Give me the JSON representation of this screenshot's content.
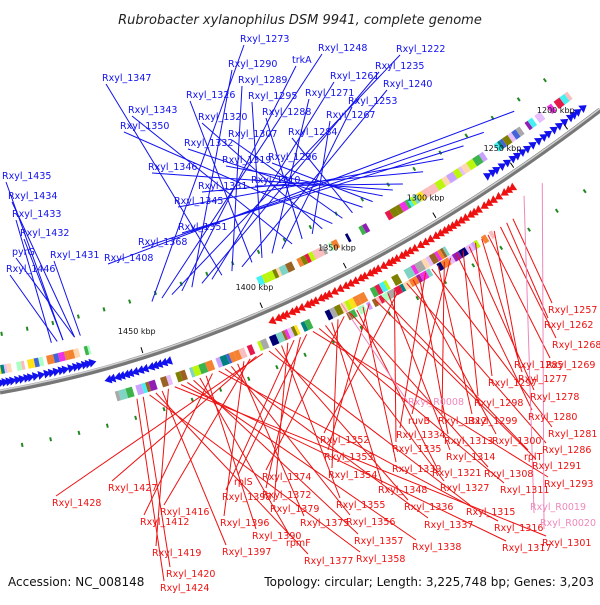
{
  "title": "Rubrobacter xylanophilus DSM 9941, complete genome",
  "accession": "Accession: NC_008148",
  "stats": "Topology: circular; Length: 3,225,748 bp; Genes: 3,203",
  "colors": {
    "forward": "#1111ee",
    "reverse": "#ee1111",
    "rna": "#ee88bb",
    "backbone": "#777777",
    "tick_mark": "#228822"
  },
  "kbp_ticks": [
    "1200 kbp",
    "1250 kbp",
    "1300 kbp",
    "1350 kbp",
    "1400 kbp",
    "1450 kbp"
  ],
  "forward_labels": [
    "Rxyl_1273",
    "Rxyl_1248",
    "Rxyl_1222",
    "trkA",
    "Rxyl_1290",
    "Rxyl_1235",
    "Rxyl_1261",
    "Rxyl_1347",
    "Rxyl_1289",
    "Rxyl_1240",
    "Rxyl_1326",
    "Rxyl_1295",
    "Rxyl_1271",
    "Rxyl_1253",
    "Rxyl_1343",
    "Rxyl_1288",
    "Rxyl_1267",
    "Rxyl_1320",
    "Rxyl_1350",
    "Rxyl_1307",
    "Rxyl_1284",
    "Rxyl_1332",
    "Rxyl_1296",
    "Rxyl_1319",
    "Rxyl_1346",
    "Rxyl_1310",
    "Rxyl_1435",
    "Rxyl_1331",
    "Rxyl_1434",
    "Rxyl_1345",
    "Rxyl_1433",
    "Rxyl_1351",
    "Rxyl_1432",
    "Rxyl_1368",
    "pyrG",
    "Rxyl_1431",
    "Rxyl_1408",
    "Rxyl_1446"
  ],
  "reverse_labels": [
    "Rxyl_1257",
    "Rxyl_1262",
    "Rxyl_1268",
    "Rxyl_1285",
    "Rxyl_1269",
    "Rxyl_1277",
    "Rxyl_1297",
    "Rxyl_1278",
    "Rxyl_1298",
    "Rxyl_1280",
    "ruvB",
    "Rxyl_1312",
    "Rxyl_1299",
    "Rxyl_1281",
    "Rxyl_1334",
    "Rxyl_1313",
    "Rxyl_1300",
    "Rxyl_1286",
    "Rxyl_1352",
    "Rxyl_1335",
    "Rxyl_1314",
    "rplT",
    "Rxyl_1291",
    "Rxyl_1353",
    "Rxyl_1339",
    "Rxyl_1321",
    "Rxyl_1308",
    "Rxyl_1374",
    "Rxyl_1354",
    "Rxyl_1348",
    "Rxyl_1327",
    "Rxyl_1311",
    "Rxyl_1293",
    "rplS",
    "Rxyl_1372",
    "Rxyl_1398",
    "Rxyl_1379",
    "Rxyl_1355",
    "Rxyl_1336",
    "Rxyl_1315",
    "Rxyl_1428",
    "Rxyl_1427",
    "Rxyl_1416",
    "Rxyl_1396",
    "Rxyl_1375",
    "Rxyl_1356",
    "Rxyl_1337",
    "Rxyl_1316",
    "Rxyl_1412",
    "Rxyl_1390",
    "rpmF",
    "Rxyl_1357",
    "Rxyl_1338",
    "Rxyl_1317",
    "Rxyl_1301",
    "Rxyl_1419",
    "Rxyl_1397",
    "Rxyl_1377",
    "Rxyl_1358",
    "Rxyl_1420",
    "Rxyl_1424"
  ],
  "rna_labels": [
    "Rxyl_R0008",
    "Rxyl_R0019",
    "Rxyl_R0020"
  ]
}
